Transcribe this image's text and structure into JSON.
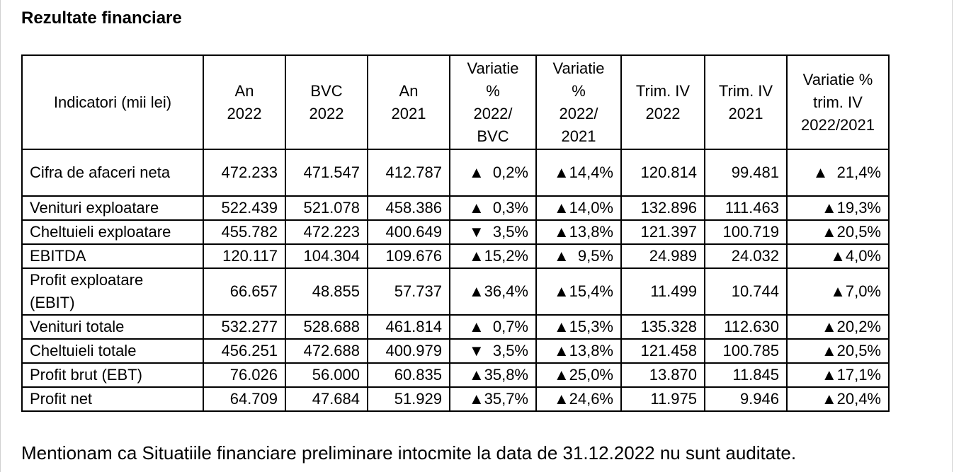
{
  "title": "Rezultate financiare",
  "table": {
    "headers": [
      "Indicatori (mii lei)",
      "An\n2022",
      "BVC\n2022",
      "An\n2021",
      "Variatie\n%\n2022/\nBVC",
      "Variatie\n%\n2022/\n2021",
      "Trim. IV\n2022",
      "Trim. IV\n2021",
      "Variatie %\ntrim. IV\n2022/2021"
    ],
    "rows": [
      {
        "indicator": "Cifra de afaceri neta",
        "cells": [
          "472.233",
          "471.547",
          "412.787",
          "▲  0,2%",
          "▲14,4%",
          "120.814",
          "99.481",
          "▲  21,4%"
        ]
      },
      {
        "indicator": "Venituri exploatare",
        "cells": [
          "522.439",
          "521.078",
          "458.386",
          "▲  0,3%",
          "▲14,0%",
          "132.896",
          "111.463",
          "▲19,3%"
        ]
      },
      {
        "indicator": "Cheltuieli exploatare",
        "cells": [
          "455.782",
          "472.223",
          "400.649",
          "▼  3,5%",
          "▲13,8%",
          "121.397",
          "100.719",
          "▲20,5%"
        ]
      },
      {
        "indicator": "EBITDA",
        "cells": [
          "120.117",
          "104.304",
          "109.676",
          "▲15,2%",
          "▲  9,5%",
          "24.989",
          "24.032",
          "▲4,0%"
        ]
      },
      {
        "indicator": "Profit exploatare\n(EBIT)",
        "cells": [
          "66.657",
          "48.855",
          "57.737",
          "▲36,4%",
          "▲15,4%",
          "11.499",
          "10.744",
          "▲7,0%"
        ]
      },
      {
        "indicator": "Venituri totale",
        "cells": [
          "532.277",
          "528.688",
          "461.814",
          "▲  0,7%",
          "▲15,3%",
          "135.328",
          "112.630",
          "▲20,2%"
        ]
      },
      {
        "indicator": "Cheltuieli totale",
        "cells": [
          "456.251",
          "472.688",
          "400.979",
          "▼  3,5%",
          "▲13,8%",
          "121.458",
          "100.785",
          "▲20,5%"
        ]
      },
      {
        "indicator": "Profit brut (EBT)",
        "cells": [
          "76.026",
          "56.000",
          "60.835",
          "▲35,8%",
          "▲25,0%",
          "13.870",
          "11.845",
          "▲17,1%"
        ]
      },
      {
        "indicator": "Profit net",
        "cells": [
          "64.709",
          "47.684",
          "51.929",
          "▲35,7%",
          "▲24,6%",
          "11.975",
          "9.946",
          "▲20,4%"
        ]
      }
    ]
  },
  "footer": "Mentionam ca Situatiile financiare preliminare intocmite la data de 31.12.2022 nu sunt auditate."
}
